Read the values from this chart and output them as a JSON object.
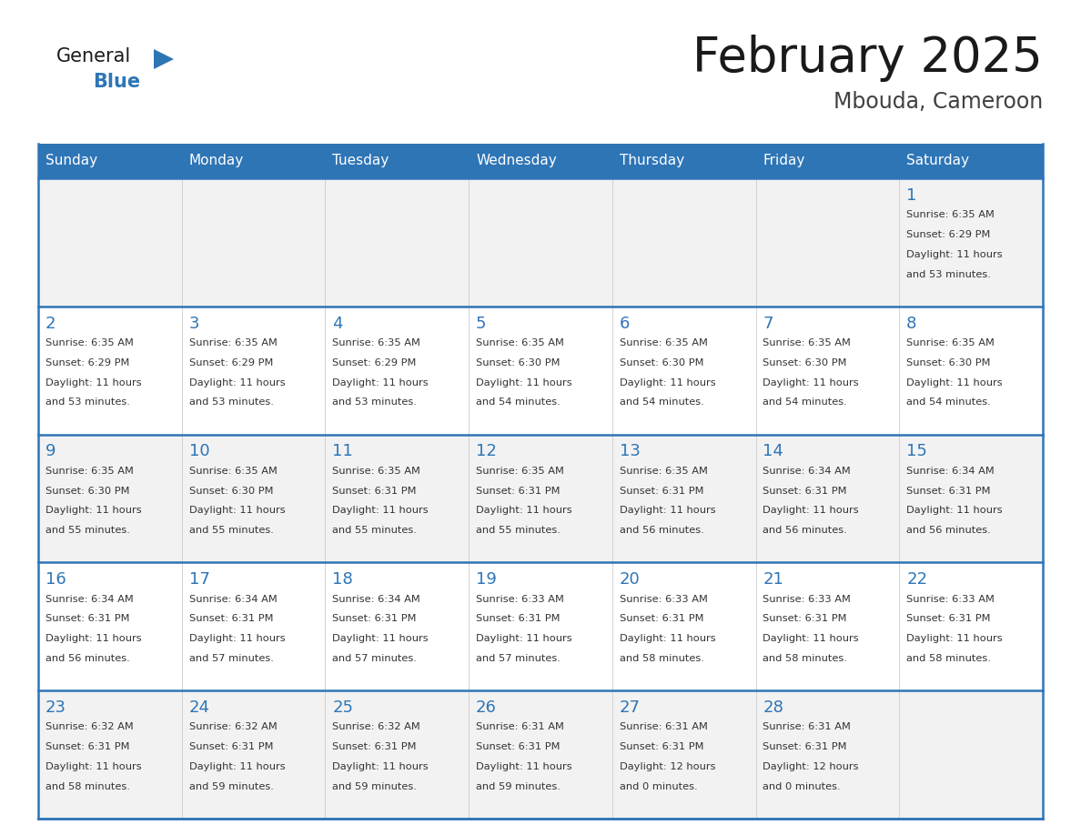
{
  "title": "February 2025",
  "subtitle": "Mbouda, Cameroon",
  "header_bg": "#2E75B6",
  "header_text_color": "#FFFFFF",
  "border_color": "#2E75B6",
  "day_names": [
    "Sunday",
    "Monday",
    "Tuesday",
    "Wednesday",
    "Thursday",
    "Friday",
    "Saturday"
  ],
  "title_color": "#1a1a1a",
  "subtitle_color": "#404040",
  "day_num_color": "#2E75B6",
  "cell_text_color": "#333333",
  "logo_general_color": "#1a1a1a",
  "logo_blue_color": "#2E75B6",
  "cell_bg_even": "#F2F2F2",
  "cell_bg_odd": "#FFFFFF",
  "calendar_data": [
    [
      null,
      null,
      null,
      null,
      null,
      null,
      {
        "day": 1,
        "sunrise": "6:35 AM",
        "sunset": "6:29 PM",
        "daylight": "11 hours and 53 minutes."
      }
    ],
    [
      {
        "day": 2,
        "sunrise": "6:35 AM",
        "sunset": "6:29 PM",
        "daylight": "11 hours and 53 minutes."
      },
      {
        "day": 3,
        "sunrise": "6:35 AM",
        "sunset": "6:29 PM",
        "daylight": "11 hours and 53 minutes."
      },
      {
        "day": 4,
        "sunrise": "6:35 AM",
        "sunset": "6:29 PM",
        "daylight": "11 hours and 53 minutes."
      },
      {
        "day": 5,
        "sunrise": "6:35 AM",
        "sunset": "6:30 PM",
        "daylight": "11 hours and 54 minutes."
      },
      {
        "day": 6,
        "sunrise": "6:35 AM",
        "sunset": "6:30 PM",
        "daylight": "11 hours and 54 minutes."
      },
      {
        "day": 7,
        "sunrise": "6:35 AM",
        "sunset": "6:30 PM",
        "daylight": "11 hours and 54 minutes."
      },
      {
        "day": 8,
        "sunrise": "6:35 AM",
        "sunset": "6:30 PM",
        "daylight": "11 hours and 54 minutes."
      }
    ],
    [
      {
        "day": 9,
        "sunrise": "6:35 AM",
        "sunset": "6:30 PM",
        "daylight": "11 hours and 55 minutes."
      },
      {
        "day": 10,
        "sunrise": "6:35 AM",
        "sunset": "6:30 PM",
        "daylight": "11 hours and 55 minutes."
      },
      {
        "day": 11,
        "sunrise": "6:35 AM",
        "sunset": "6:31 PM",
        "daylight": "11 hours and 55 minutes."
      },
      {
        "day": 12,
        "sunrise": "6:35 AM",
        "sunset": "6:31 PM",
        "daylight": "11 hours and 55 minutes."
      },
      {
        "day": 13,
        "sunrise": "6:35 AM",
        "sunset": "6:31 PM",
        "daylight": "11 hours and 56 minutes."
      },
      {
        "day": 14,
        "sunrise": "6:34 AM",
        "sunset": "6:31 PM",
        "daylight": "11 hours and 56 minutes."
      },
      {
        "day": 15,
        "sunrise": "6:34 AM",
        "sunset": "6:31 PM",
        "daylight": "11 hours and 56 minutes."
      }
    ],
    [
      {
        "day": 16,
        "sunrise": "6:34 AM",
        "sunset": "6:31 PM",
        "daylight": "11 hours and 56 minutes."
      },
      {
        "day": 17,
        "sunrise": "6:34 AM",
        "sunset": "6:31 PM",
        "daylight": "11 hours and 57 minutes."
      },
      {
        "day": 18,
        "sunrise": "6:34 AM",
        "sunset": "6:31 PM",
        "daylight": "11 hours and 57 minutes."
      },
      {
        "day": 19,
        "sunrise": "6:33 AM",
        "sunset": "6:31 PM",
        "daylight": "11 hours and 57 minutes."
      },
      {
        "day": 20,
        "sunrise": "6:33 AM",
        "sunset": "6:31 PM",
        "daylight": "11 hours and 58 minutes."
      },
      {
        "day": 21,
        "sunrise": "6:33 AM",
        "sunset": "6:31 PM",
        "daylight": "11 hours and 58 minutes."
      },
      {
        "day": 22,
        "sunrise": "6:33 AM",
        "sunset": "6:31 PM",
        "daylight": "11 hours and 58 minutes."
      }
    ],
    [
      {
        "day": 23,
        "sunrise": "6:32 AM",
        "sunset": "6:31 PM",
        "daylight": "11 hours and 58 minutes."
      },
      {
        "day": 24,
        "sunrise": "6:32 AM",
        "sunset": "6:31 PM",
        "daylight": "11 hours and 59 minutes."
      },
      {
        "day": 25,
        "sunrise": "6:32 AM",
        "sunset": "6:31 PM",
        "daylight": "11 hours and 59 minutes."
      },
      {
        "day": 26,
        "sunrise": "6:31 AM",
        "sunset": "6:31 PM",
        "daylight": "11 hours and 59 minutes."
      },
      {
        "day": 27,
        "sunrise": "6:31 AM",
        "sunset": "6:31 PM",
        "daylight": "12 hours and 0 minutes."
      },
      {
        "day": 28,
        "sunrise": "6:31 AM",
        "sunset": "6:31 PM",
        "daylight": "12 hours and 0 minutes."
      },
      null
    ]
  ]
}
